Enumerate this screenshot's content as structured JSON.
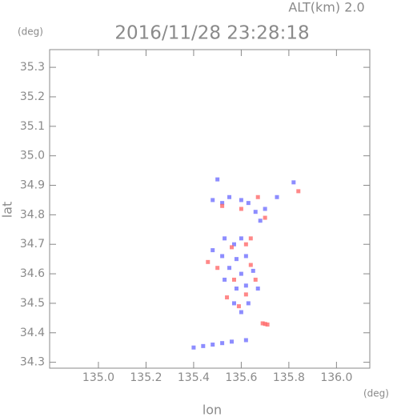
{
  "chart_data": {
    "type": "scatter",
    "title": "2016/11/28 23:28:18",
    "subtitle": "ALT(km) 2.0",
    "y_unit": "(deg)",
    "x_unit": "(deg)",
    "xlabel": "lon",
    "ylabel": "lat",
    "xlim": [
      134.795,
      136.14
    ],
    "ylim": [
      34.28,
      35.36
    ],
    "xticks": [
      {
        "value": 135.0,
        "label": "135.0"
      },
      135.2,
      135.4,
      135.6,
      135.8,
      {
        "value": 136.0,
        "label": "136.0"
      }
    ],
    "yticks": [
      34.3,
      34.4,
      34.5,
      34.6,
      34.7,
      34.8,
      34.9,
      {
        "value": 35.0,
        "label": "35.0"
      },
      35.1,
      35.2,
      35.3
    ],
    "series": [
      {
        "color": "#7070ff",
        "x": [
          135.5,
          135.48,
          135.52,
          135.55,
          135.6,
          135.63,
          135.66,
          135.7,
          135.68,
          135.75,
          135.82,
          135.53,
          135.57,
          135.6,
          135.48,
          135.52,
          135.58,
          135.62,
          135.55,
          135.6,
          135.65,
          135.53,
          135.58,
          135.62,
          135.67,
          135.57,
          135.63,
          135.6,
          135.4,
          135.44,
          135.48,
          135.52,
          135.56,
          135.62
        ],
        "y": [
          34.92,
          34.85,
          34.84,
          34.86,
          34.85,
          34.84,
          34.81,
          34.82,
          34.78,
          34.86,
          34.91,
          34.72,
          34.7,
          34.72,
          34.68,
          34.66,
          34.65,
          34.66,
          34.62,
          34.6,
          34.61,
          34.58,
          34.55,
          34.56,
          34.55,
          34.5,
          34.5,
          34.47,
          34.35,
          34.355,
          34.36,
          34.365,
          34.37,
          34.375
        ]
      },
      {
        "color": "#ff6a6a",
        "x": [
          135.7,
          135.69,
          135.71,
          135.52,
          135.6,
          135.67,
          135.7,
          135.56,
          135.62,
          135.46,
          135.5,
          135.64,
          135.57,
          135.66,
          135.54,
          135.62,
          135.59,
          135.84,
          135.64
        ],
        "y": [
          34.43,
          34.432,
          34.428,
          34.83,
          34.82,
          34.86,
          34.79,
          34.69,
          34.7,
          34.64,
          34.62,
          34.63,
          34.58,
          34.58,
          34.52,
          34.53,
          34.49,
          34.88,
          34.72
        ]
      }
    ]
  }
}
